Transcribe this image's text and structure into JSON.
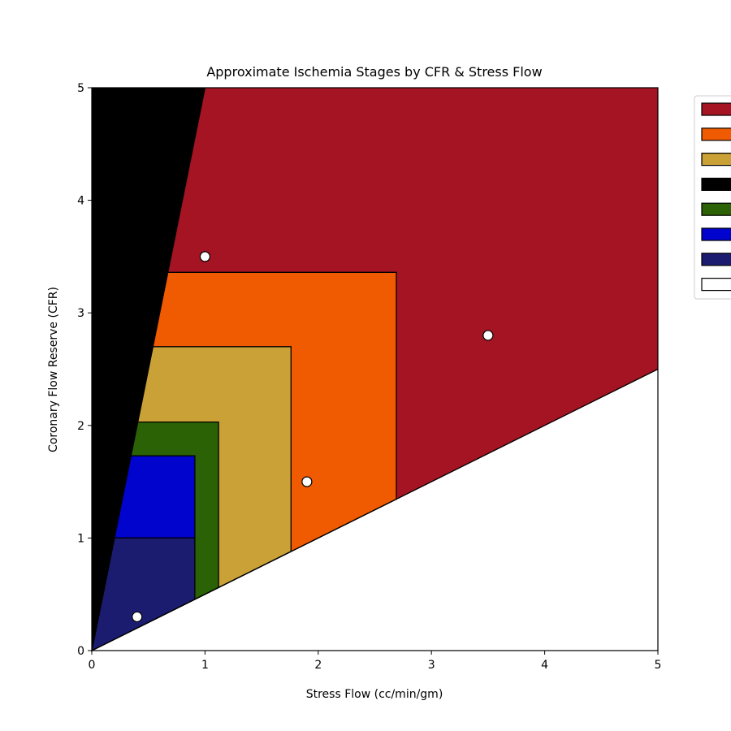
{
  "chart_data": {
    "type": "area",
    "title": "Approximate Ischemia Stages by CFR & Stress Flow",
    "xlabel": "Stress Flow (cc/min/gm)",
    "ylabel": "Coronary Flow Reserve (CFR)",
    "xlim": [
      0,
      5
    ],
    "ylim": [
      0,
      5
    ],
    "xticks": [
      "0",
      "1",
      "2",
      "3",
      "4",
      "5"
    ],
    "yticks": [
      "0",
      "1",
      "2",
      "3",
      "4",
      "5"
    ],
    "grid": false,
    "legend_position": "upper-right-outside",
    "regions": [
      {
        "color": "#a51422",
        "vertices": [
          [
            0,
            0
          ],
          [
            1.0,
            5
          ],
          [
            5,
            5
          ],
          [
            5,
            2.5
          ]
        ]
      },
      {
        "color": "#000000",
        "vertices": [
          [
            0,
            0
          ],
          [
            0,
            5
          ],
          [
            1.0,
            5
          ]
        ]
      },
      {
        "color": "#f05a00",
        "vertices": [
          [
            0.67,
            3.36
          ],
          [
            2.69,
            3.36
          ],
          [
            2.69,
            1.345
          ],
          [
            0,
            0
          ]
        ]
      },
      {
        "color": "#c9a137",
        "vertices": [
          [
            0.54,
            2.7
          ],
          [
            1.76,
            2.7
          ],
          [
            1.76,
            0.88
          ],
          [
            0,
            0
          ]
        ]
      },
      {
        "color": "#2a6205",
        "vertices": [
          [
            0.405,
            2.03
          ],
          [
            1.12,
            2.03
          ],
          [
            1.12,
            0.56
          ],
          [
            0,
            0
          ]
        ]
      },
      {
        "color": "#0004cc",
        "vertices": [
          [
            0.345,
            1.73
          ],
          [
            0.91,
            1.73
          ],
          [
            0.91,
            1.0
          ],
          [
            0.2,
            1.0
          ]
        ]
      },
      {
        "color": "#1b1c70",
        "vertices": [
          [
            0,
            0
          ],
          [
            0.2,
            1.0
          ],
          [
            0.91,
            1.0
          ],
          [
            0.91,
            0.455
          ]
        ]
      }
    ],
    "boundary_lines": [
      {
        "from": [
          0,
          0
        ],
        "to": [
          5,
          2.5
        ],
        "color": "#000000"
      },
      {
        "from": [
          0,
          0
        ],
        "to": [
          1.0,
          5
        ],
        "color": "#000000"
      }
    ],
    "points": [
      {
        "x": 1.0,
        "y": 3.5
      },
      {
        "x": 3.5,
        "y": 2.8
      },
      {
        "x": 1.9,
        "y": 1.5
      },
      {
        "x": 0.4,
        "y": 0.3
      }
    ],
    "legend": {
      "entries": [
        {
          "label": "",
          "color": "#a51422"
        },
        {
          "label": "",
          "color": "#f05a00"
        },
        {
          "label": "",
          "color": "#c9a137"
        },
        {
          "label": "",
          "color": "#000000"
        },
        {
          "label": "",
          "color": "#2a6205"
        },
        {
          "label": "",
          "color": "#0004cc"
        },
        {
          "label": "",
          "color": "#1b1c70"
        },
        {
          "label": "",
          "color": "#ffffff"
        }
      ]
    }
  }
}
